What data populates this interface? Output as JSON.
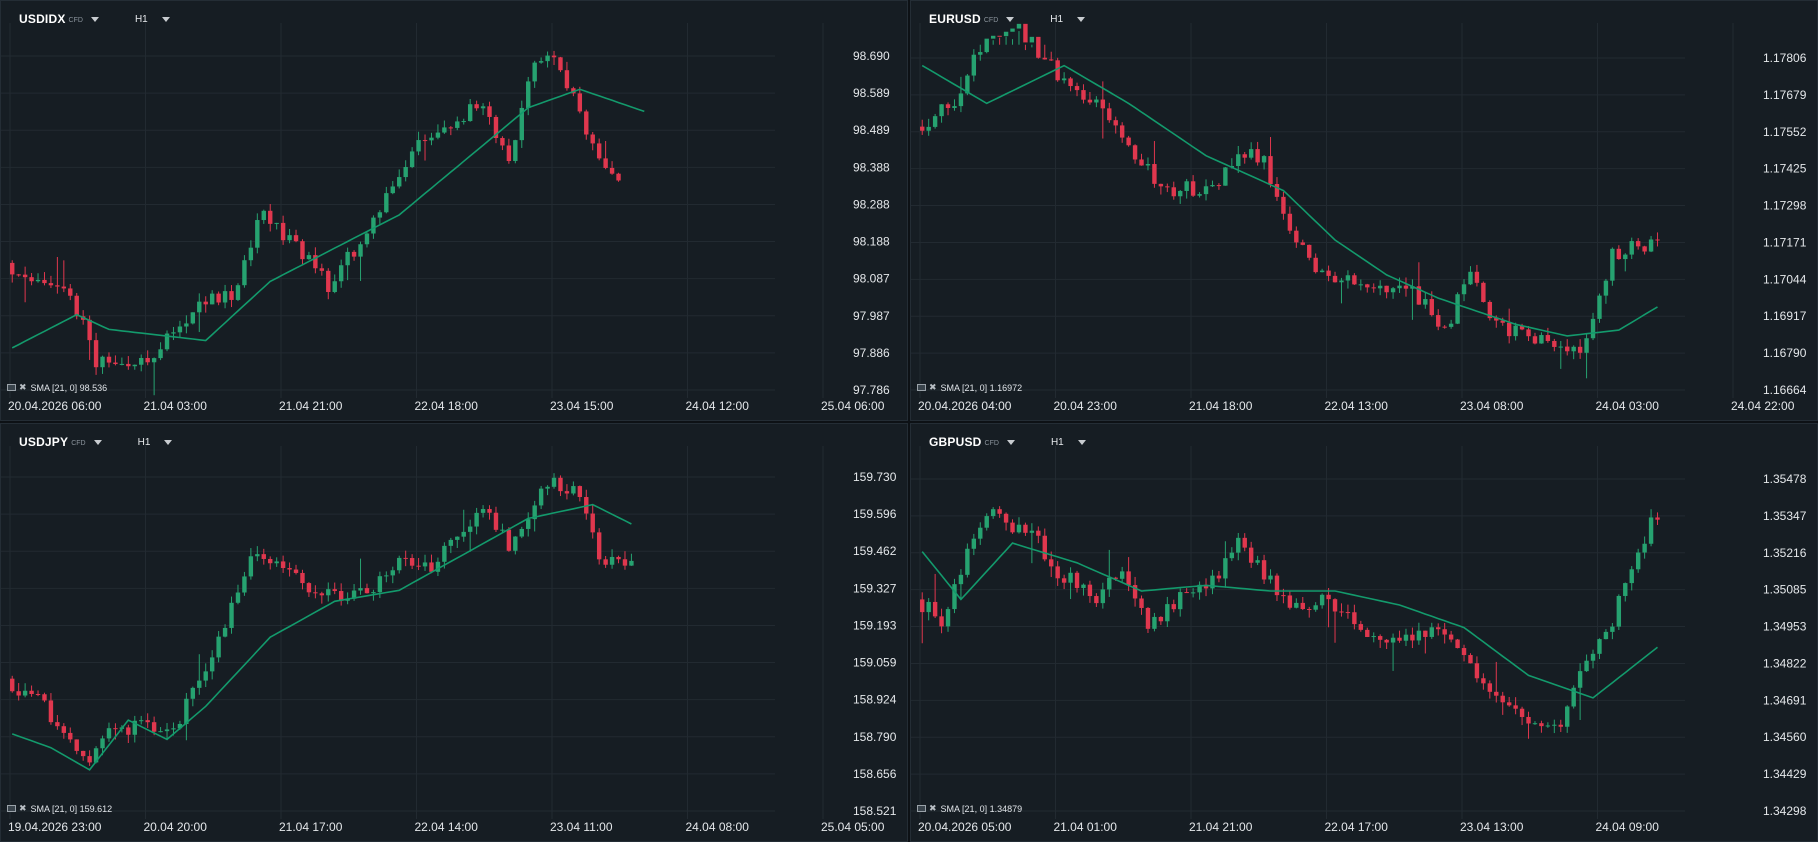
{
  "panels": [
    {
      "symbol": "USDIDX",
      "badge": "CFD",
      "timeframe": "H1",
      "indicator": "SMA [21, 0] 98.536",
      "y_ticks": [
        "98.690",
        "98.589",
        "98.489",
        "98.388",
        "98.288",
        "98.188",
        "98.087",
        "97.987",
        "97.886",
        "97.786"
      ],
      "x_ticks": [
        "20.04.2026 06:00",
        "21.04 03:00",
        "21.04 21:00",
        "22.04 18:00",
        "23.04 15:00",
        "24.04 12:00",
        "25.04 06:00"
      ],
      "chart_data": {
        "type": "candlestick",
        "ylim": [
          97.786,
          98.69
        ],
        "bars": 121,
        "waypoints": [
          [
            0,
            98.13
          ],
          [
            10,
            98.04
          ],
          [
            14,
            97.87
          ],
          [
            20,
            97.85
          ],
          [
            25,
            97.92
          ],
          [
            30,
            98.02
          ],
          [
            35,
            98.04
          ],
          [
            40,
            98.27
          ],
          [
            45,
            98.17
          ],
          [
            50,
            98.07
          ],
          [
            55,
            98.19
          ],
          [
            60,
            98.33
          ],
          [
            65,
            98.47
          ],
          [
            70,
            98.52
          ],
          [
            74,
            98.56
          ],
          [
            78,
            98.4
          ],
          [
            82,
            98.68
          ],
          [
            86,
            98.66
          ],
          [
            90,
            98.48
          ],
          [
            94,
            98.35
          ]
        ],
        "sma_waypoints": [
          [
            0,
            97.9
          ],
          [
            10,
            97.99
          ],
          [
            15,
            97.95
          ],
          [
            30,
            97.92
          ],
          [
            40,
            98.08
          ],
          [
            60,
            98.26
          ],
          [
            80,
            98.55
          ],
          [
            88,
            98.6
          ],
          [
            98,
            98.54
          ]
        ]
      }
    },
    {
      "symbol": "EURUSD",
      "badge": "CFD",
      "timeframe": "H1",
      "indicator": "SMA [21, 0] 1.16972",
      "y_ticks": [
        "1.17806",
        "1.17679",
        "1.17552",
        "1.17425",
        "1.17298",
        "1.17171",
        "1.17044",
        "1.16917",
        "1.16790",
        "1.16664"
      ],
      "x_ticks": [
        "20.04.2026 04:00",
        "20.04 23:00",
        "21.04 18:00",
        "22.04 13:00",
        "23.04 08:00",
        "24.04 03:00",
        "24.04 22:00"
      ],
      "chart_data": {
        "type": "candlestick",
        "ylim": [
          1.16664,
          1.17806
        ],
        "bars": 121,
        "waypoints": [
          [
            0,
            1.1757
          ],
          [
            6,
            1.1765
          ],
          [
            10,
            1.1785
          ],
          [
            16,
            1.1791
          ],
          [
            22,
            1.1775
          ],
          [
            28,
            1.1765
          ],
          [
            34,
            1.1745
          ],
          [
            40,
            1.1735
          ],
          [
            46,
            1.1737
          ],
          [
            50,
            1.1747
          ],
          [
            54,
            1.1746
          ],
          [
            58,
            1.1722
          ],
          [
            62,
            1.1707
          ],
          [
            70,
            1.1702
          ],
          [
            76,
            1.1703
          ],
          [
            82,
            1.1687
          ],
          [
            86,
            1.1706
          ],
          [
            90,
            1.1689
          ],
          [
            96,
            1.1684
          ],
          [
            100,
            1.1679
          ],
          [
            104,
            1.1683
          ],
          [
            108,
            1.1713
          ],
          [
            114,
            1.1717
          ]
        ],
        "sma_waypoints": [
          [
            0,
            1.1778
          ],
          [
            10,
            1.1765
          ],
          [
            22,
            1.1778
          ],
          [
            32,
            1.1765
          ],
          [
            44,
            1.1747
          ],
          [
            56,
            1.1735
          ],
          [
            64,
            1.1718
          ],
          [
            72,
            1.1706
          ],
          [
            80,
            1.1698
          ],
          [
            92,
            1.1689
          ],
          [
            100,
            1.1685
          ],
          [
            108,
            1.1687
          ],
          [
            114,
            1.1695
          ]
        ]
      }
    },
    {
      "symbol": "USDJPY",
      "badge": "CFD",
      "timeframe": "H1",
      "indicator": "SMA [21, 0] 159.612",
      "y_ticks": [
        "159.730",
        "159.596",
        "159.462",
        "159.327",
        "159.193",
        "159.059",
        "158.924",
        "158.790",
        "158.656",
        "158.521"
      ],
      "x_ticks": [
        "19.04.2026 23:00",
        "20.04 20:00",
        "21.04 17:00",
        "22.04 14:00",
        "23.04 11:00",
        "24.04 08:00",
        "25.04 05:00"
      ],
      "chart_data": {
        "type": "candlestick",
        "ylim": [
          158.521,
          159.73
        ],
        "bars": 121,
        "waypoints": [
          [
            0,
            159.0
          ],
          [
            6,
            158.9
          ],
          [
            12,
            158.7
          ],
          [
            16,
            158.8
          ],
          [
            22,
            158.85
          ],
          [
            26,
            158.8
          ],
          [
            30,
            159.0
          ],
          [
            34,
            159.2
          ],
          [
            38,
            159.45
          ],
          [
            42,
            159.42
          ],
          [
            46,
            159.35
          ],
          [
            50,
            159.3
          ],
          [
            54,
            159.32
          ],
          [
            58,
            159.35
          ],
          [
            62,
            159.45
          ],
          [
            66,
            159.4
          ],
          [
            70,
            159.52
          ],
          [
            74,
            159.62
          ],
          [
            78,
            159.48
          ],
          [
            84,
            159.7
          ],
          [
            88,
            159.7
          ],
          [
            92,
            159.45
          ],
          [
            96,
            159.4
          ]
        ],
        "sma_waypoints": [
          [
            0,
            158.8
          ],
          [
            6,
            158.75
          ],
          [
            12,
            158.67
          ],
          [
            18,
            158.85
          ],
          [
            24,
            158.78
          ],
          [
            30,
            158.9
          ],
          [
            40,
            159.15
          ],
          [
            50,
            159.28
          ],
          [
            60,
            159.32
          ],
          [
            70,
            159.45
          ],
          [
            80,
            159.58
          ],
          [
            90,
            159.63
          ],
          [
            96,
            159.56
          ]
        ]
      }
    },
    {
      "symbol": "GBPUSD",
      "badge": "CFD",
      "timeframe": "H1",
      "indicator": "SMA [21, 0] 1.34879",
      "y_ticks": [
        "1.35478",
        "1.35347",
        "1.35216",
        "1.35085",
        "1.34953",
        "1.34822",
        "1.34691",
        "1.34560",
        "1.34429",
        "1.34298"
      ],
      "x_ticks": [
        "20.04.2026 05:00",
        "21.04 01:00",
        "21.04 21:00",
        "22.04 17:00",
        "23.04 13:00",
        "24.04 09:00"
      ],
      "chart_data": {
        "type": "candlestick",
        "ylim": [
          1.34298,
          1.35478
        ],
        "bars": 121,
        "waypoints": [
          [
            0,
            1.3505
          ],
          [
            4,
            1.3498
          ],
          [
            8,
            1.3522
          ],
          [
            12,
            1.3535
          ],
          [
            18,
            1.3528
          ],
          [
            22,
            1.3515
          ],
          [
            28,
            1.3505
          ],
          [
            32,
            1.3515
          ],
          [
            36,
            1.3495
          ],
          [
            42,
            1.3508
          ],
          [
            46,
            1.3512
          ],
          [
            50,
            1.3525
          ],
          [
            54,
            1.3515
          ],
          [
            58,
            1.35
          ],
          [
            64,
            1.3505
          ],
          [
            70,
            1.349
          ],
          [
            76,
            1.349
          ],
          [
            82,
            1.3495
          ],
          [
            86,
            1.3482
          ],
          [
            90,
            1.3468
          ],
          [
            94,
            1.3462
          ],
          [
            100,
            1.3462
          ],
          [
            104,
            1.3485
          ],
          [
            108,
            1.3498
          ],
          [
            112,
            1.3522
          ],
          [
            114,
            1.3532
          ]
        ],
        "sma_waypoints": [
          [
            0,
            1.3522
          ],
          [
            6,
            1.3505
          ],
          [
            14,
            1.3525
          ],
          [
            24,
            1.3518
          ],
          [
            34,
            1.3508
          ],
          [
            44,
            1.351
          ],
          [
            54,
            1.3508
          ],
          [
            64,
            1.3508
          ],
          [
            74,
            1.3503
          ],
          [
            84,
            1.3495
          ],
          [
            94,
            1.3478
          ],
          [
            104,
            1.347
          ],
          [
            114,
            1.3488
          ]
        ]
      }
    }
  ],
  "colors": {
    "up": "#26a270",
    "down": "#e0374e",
    "sma": "#139a6c",
    "grid": "#222a31",
    "axis_text": "#e4e7ea",
    "background": "#161d23"
  }
}
